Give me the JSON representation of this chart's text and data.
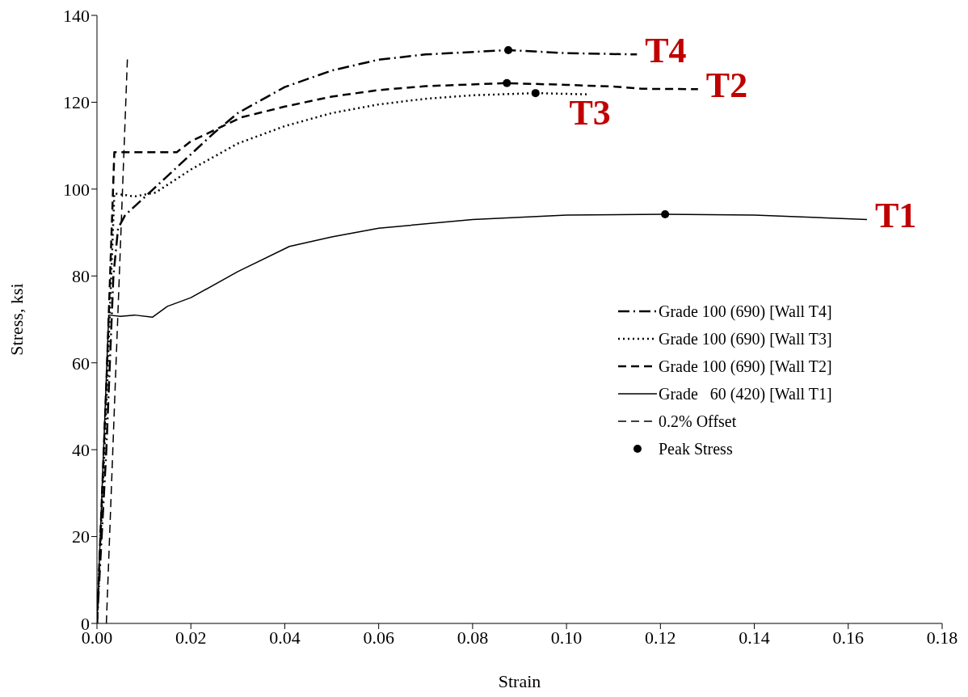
{
  "chart_data": {
    "type": "line",
    "xlabel": "Strain",
    "ylabel": "Stress, ksi",
    "xlim": [
      0,
      0.18
    ],
    "xticks": [
      {
        "value": 0,
        "label": "0.00"
      },
      {
        "value": 0.02,
        "label": "0.02"
      },
      {
        "value": 0.04,
        "label": "0.04"
      },
      {
        "value": 0.06,
        "label": "0.06"
      },
      {
        "value": 0.08,
        "label": "0.08"
      },
      {
        "value": 0.1,
        "label": "0.10"
      },
      {
        "value": 0.12,
        "label": "0.12"
      },
      {
        "value": 0.14,
        "label": "0.14"
      },
      {
        "value": 0.16,
        "label": "0.16"
      },
      {
        "value": 0.18,
        "label": "0.18"
      }
    ],
    "ylim": [
      0,
      140
    ],
    "yticks": [
      0,
      20,
      40,
      60,
      80,
      100,
      120,
      140
    ],
    "grid": false,
    "legend": "right",
    "marker": "none",
    "series": [
      {
        "name": "Grade 100 (690) [Wall T4]",
        "color": "#000000",
        "line_style": "dashdot",
        "x": [
          0,
          0.002,
          0.0035,
          0.0045,
          0.006,
          0.008,
          0.012,
          0.02,
          0.025,
          0.03,
          0.04,
          0.05,
          0.06,
          0.07,
          0.0876,
          0.1,
          0.115
        ],
        "values": [
          0,
          40,
          80,
          91,
          94,
          96,
          100,
          108,
          113,
          117.5,
          123.5,
          127.3,
          129.8,
          131,
          132,
          131.3,
          131
        ]
      },
      {
        "name": "Grade 100 (690) [Wall T3]",
        "color": "#000000",
        "line_style": "dotted",
        "x": [
          0,
          0.002,
          0.0037,
          0.008,
          0.0125,
          0.02,
          0.03,
          0.04,
          0.05,
          0.06,
          0.07,
          0.08,
          0.0934,
          0.105
        ],
        "values": [
          0,
          50,
          99,
          98.3,
          99.2,
          104.5,
          110.5,
          114.5,
          117.5,
          119.5,
          120.8,
          121.6,
          122.1,
          121.8
        ]
      },
      {
        "name": "Grade 100 (690) [Wall T2]",
        "color": "#000000",
        "line_style": "dashed",
        "x": [
          0,
          0.002,
          0.0037,
          0.017,
          0.02,
          0.0307,
          0.04,
          0.05,
          0.06,
          0.07,
          0.0873,
          0.1,
          0.11,
          0.116,
          0.128
        ],
        "values": [
          0,
          55,
          108.5,
          108.5,
          111,
          116.5,
          119,
          121.3,
          122.8,
          123.7,
          124.4,
          124,
          123.6,
          123.1,
          123
        ]
      },
      {
        "name": "Grade   60 (420) [Wall T1]",
        "color": "#000000",
        "line_style": "solid",
        "x": [
          0,
          0.0025,
          0.005,
          0.008,
          0.0118,
          0.015,
          0.02,
          0.03,
          0.041,
          0.05,
          0.06,
          0.08,
          0.1,
          0.121,
          0.14,
          0.164
        ],
        "values": [
          0,
          71,
          70.7,
          71,
          70.5,
          73,
          75,
          81,
          86.8,
          89,
          91,
          93,
          94,
          94.2,
          94,
          93
        ]
      },
      {
        "name": "0.2% Offset",
        "color": "#000000",
        "line_style": "dashed",
        "x": [
          0.002,
          0.0065
        ],
        "values": [
          0,
          130.5
        ]
      },
      {
        "name": "Peak Stress",
        "type": "scatter",
        "marker": "circle",
        "color": "#000000",
        "x": [
          0.0876,
          0.0873,
          0.0934,
          0.121
        ],
        "values": [
          132,
          124.4,
          122.1,
          94.2
        ]
      }
    ],
    "annotations": [
      {
        "text": "T4",
        "x": 0.115,
        "y": 131
      },
      {
        "text": "T2",
        "x": 0.128,
        "y": 123
      },
      {
        "text": "T3",
        "x": 0.105,
        "y": 122
      },
      {
        "text": "T1",
        "x": 0.164,
        "y": 93
      }
    ]
  }
}
